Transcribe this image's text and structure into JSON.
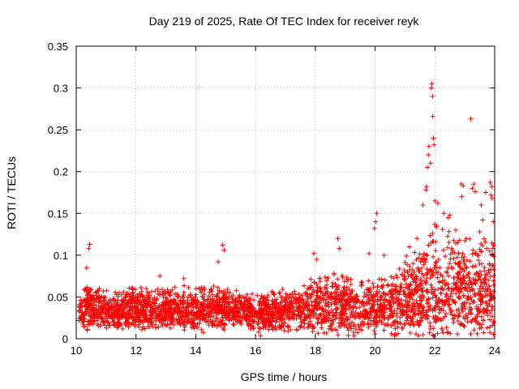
{
  "chart_data": {
    "type": "scatter",
    "title": "Day 219 of 2025, Rate Of TEC Index for receiver reyk",
    "xlabel": "GPS time / hours",
    "ylabel": "ROTI / TECUs",
    "xlim": [
      10,
      24
    ],
    "ylim": [
      0,
      0.35
    ],
    "grid": true,
    "legend": "none",
    "marker": "plus",
    "color": "#ff0000",
    "xticks": [
      10,
      12,
      14,
      16,
      18,
      20,
      22,
      24
    ],
    "xtick_labels": [
      "10",
      "12",
      "14",
      "16",
      "18",
      "20",
      "22",
      "24"
    ],
    "yticks": [
      0,
      0.05,
      0.1,
      0.15,
      0.2,
      0.25,
      0.3,
      0.35
    ],
    "ytick_labels": [
      "0",
      "0.05",
      "0.1",
      "0.15",
      "0.2",
      "0.25",
      "0.3",
      "0.35"
    ],
    "series": [
      {
        "name": "ROTI",
        "band_profile": {
          "x": [
            10.1,
            10.5,
            11,
            11.5,
            12,
            12.5,
            13,
            13.5,
            14,
            14.5,
            15,
            15.5,
            16,
            16.5,
            17,
            17.5,
            18,
            18.5,
            19,
            19.5,
            20,
            20.5,
            21,
            21.5,
            22,
            22.5,
            23,
            23.5,
            24
          ],
          "low": [
            0.012,
            0.015,
            0.014,
            0.013,
            0.015,
            0.014,
            0.013,
            0.015,
            0.013,
            0.015,
            0.016,
            0.017,
            0.012,
            0.01,
            0.012,
            0.012,
            0.01,
            0.01,
            0.008,
            0.008,
            0.01,
            0.01,
            0.01,
            0.008,
            0.005,
            0.005,
            0.005,
            0.005,
            0.005
          ],
          "high": [
            0.06,
            0.063,
            0.058,
            0.055,
            0.065,
            0.062,
            0.06,
            0.065,
            0.06,
            0.065,
            0.06,
            0.058,
            0.055,
            0.057,
            0.062,
            0.065,
            0.075,
            0.08,
            0.075,
            0.07,
            0.07,
            0.08,
            0.095,
            0.11,
            0.14,
            0.13,
            0.12,
            0.12,
            0.12
          ]
        },
        "outliers": [
          {
            "x": 10.45,
            "y": 0.113
          },
          {
            "x": 10.42,
            "y": 0.108
          },
          {
            "x": 10.35,
            "y": 0.085
          },
          {
            "x": 14.9,
            "y": 0.112
          },
          {
            "x": 14.95,
            "y": 0.106
          },
          {
            "x": 14.75,
            "y": 0.092
          },
          {
            "x": 12.8,
            "y": 0.075
          },
          {
            "x": 13.6,
            "y": 0.072
          },
          {
            "x": 17.95,
            "y": 0.102
          },
          {
            "x": 18.05,
            "y": 0.095
          },
          {
            "x": 18.75,
            "y": 0.12
          },
          {
            "x": 18.8,
            "y": 0.108
          },
          {
            "x": 19.8,
            "y": 0.102
          },
          {
            "x": 20.05,
            "y": 0.15
          },
          {
            "x": 20.02,
            "y": 0.14
          },
          {
            "x": 19.98,
            "y": 0.132
          },
          {
            "x": 20.3,
            "y": 0.1
          },
          {
            "x": 21.9,
            "y": 0.305
          },
          {
            "x": 21.88,
            "y": 0.3
          },
          {
            "x": 21.92,
            "y": 0.29
          },
          {
            "x": 21.93,
            "y": 0.266
          },
          {
            "x": 21.95,
            "y": 0.24
          },
          {
            "x": 21.97,
            "y": 0.232
          },
          {
            "x": 21.8,
            "y": 0.23
          },
          {
            "x": 21.78,
            "y": 0.22
          },
          {
            "x": 21.85,
            "y": 0.21
          },
          {
            "x": 21.75,
            "y": 0.205
          },
          {
            "x": 21.72,
            "y": 0.182
          },
          {
            "x": 21.7,
            "y": 0.178
          },
          {
            "x": 22.0,
            "y": 0.165
          },
          {
            "x": 22.1,
            "y": 0.162
          },
          {
            "x": 21.6,
            "y": 0.16
          },
          {
            "x": 22.5,
            "y": 0.148
          },
          {
            "x": 22.45,
            "y": 0.145
          },
          {
            "x": 22.9,
            "y": 0.17
          },
          {
            "x": 22.88,
            "y": 0.185
          },
          {
            "x": 22.95,
            "y": 0.183
          },
          {
            "x": 23.2,
            "y": 0.263
          },
          {
            "x": 23.3,
            "y": 0.185
          },
          {
            "x": 23.25,
            "y": 0.18
          },
          {
            "x": 23.35,
            "y": 0.176
          },
          {
            "x": 23.55,
            "y": 0.16
          },
          {
            "x": 23.6,
            "y": 0.142
          },
          {
            "x": 23.85,
            "y": 0.187
          },
          {
            "x": 23.9,
            "y": 0.182
          },
          {
            "x": 23.88,
            "y": 0.172
          },
          {
            "x": 23.92,
            "y": 0.168
          },
          {
            "x": 23.7,
            "y": 0.175
          },
          {
            "x": 23.95,
            "y": 0.14
          },
          {
            "x": 22.7,
            "y": 0.13
          },
          {
            "x": 22.3,
            "y": 0.15
          },
          {
            "x": 21.4,
            "y": 0.12
          },
          {
            "x": 21.15,
            "y": 0.11
          },
          {
            "x": 23.05,
            "y": 0.12
          },
          {
            "x": 23.5,
            "y": 0.128
          }
        ]
      }
    ]
  }
}
